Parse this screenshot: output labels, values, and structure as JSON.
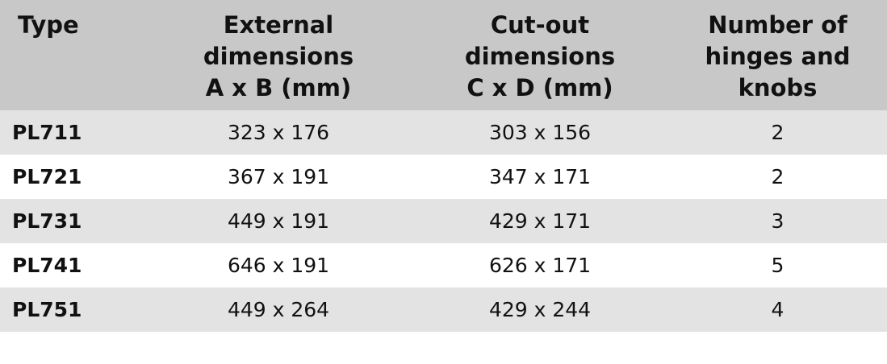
{
  "table": {
    "header": [
      "Type",
      "External dimensions A x B (mm)",
      "Cut-out dimensions C x D (mm)",
      "Number of hinges and knobs"
    ],
    "rows": [
      [
        "PL711",
        "323 x 176",
        "303 x 156",
        "2"
      ],
      [
        "PL721",
        "367 x 191",
        "347 x 171",
        "2"
      ],
      [
        "PL731",
        "449 x 191",
        "429 x 171",
        "3"
      ],
      [
        "PL741",
        "646 x 191",
        "626 x 171",
        "5"
      ],
      [
        "PL751",
        "449 x 264",
        "429 x 244",
        "4"
      ]
    ]
  }
}
